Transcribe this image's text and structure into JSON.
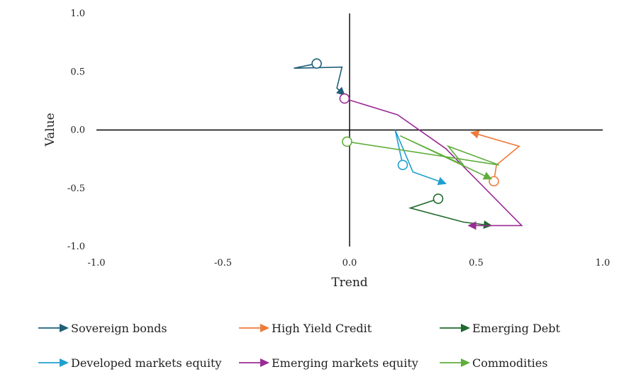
{
  "chart_data": {
    "type": "line",
    "title": "",
    "xlabel": "Trend",
    "ylabel": "Value",
    "xlim": [
      -1.0,
      1.0
    ],
    "ylim": [
      -1.0,
      1.0
    ],
    "xticks": [
      "-1.0",
      "-0.5",
      "0.0",
      "0.5",
      "1.0"
    ],
    "yticks": [
      "1.0",
      "0.5",
      "0.0",
      "-0.5",
      "-1.0"
    ],
    "grid": false,
    "legend_position": "bottom",
    "series": [
      {
        "name": "Sovereign bonds",
        "color": "#1f5f7a",
        "points": [
          [
            -0.13,
            0.57
          ],
          [
            -0.22,
            0.53
          ],
          [
            -0.03,
            0.54
          ],
          [
            -0.05,
            0.36
          ],
          [
            -0.02,
            0.3
          ]
        ]
      },
      {
        "name": "High Yield Credit",
        "color": "#ee7a3b",
        "points": [
          [
            0.57,
            -0.44
          ],
          [
            0.58,
            -0.3
          ],
          [
            0.67,
            -0.14
          ],
          [
            0.48,
            -0.02
          ]
        ]
      },
      {
        "name": "Emerging Debt",
        "color": "#206a2c",
        "points": [
          [
            0.35,
            -0.59
          ],
          [
            0.24,
            -0.67
          ],
          [
            0.45,
            -0.79
          ],
          [
            0.56,
            -0.82
          ]
        ]
      },
      {
        "name": "Developed markets equity",
        "color": "#1e9fd0",
        "points": [
          [
            0.21,
            -0.3
          ],
          [
            0.18,
            0.0
          ],
          [
            0.25,
            -0.36
          ],
          [
            0.38,
            -0.46
          ]
        ]
      },
      {
        "name": "Emerging markets equity",
        "color": "#9b2b94",
        "points": [
          [
            -0.02,
            0.27
          ],
          [
            0.19,
            0.13
          ],
          [
            0.38,
            -0.16
          ],
          [
            0.68,
            -0.82
          ],
          [
            0.47,
            -0.82
          ]
        ]
      },
      {
        "name": "Commodities",
        "color": "#5fae3c",
        "points": [
          [
            -0.01,
            -0.1
          ],
          [
            0.59,
            -0.3
          ],
          [
            0.39,
            -0.14
          ],
          [
            0.45,
            -0.3
          ],
          [
            0.2,
            -0.05
          ],
          [
            0.56,
            -0.42
          ]
        ]
      }
    ]
  }
}
